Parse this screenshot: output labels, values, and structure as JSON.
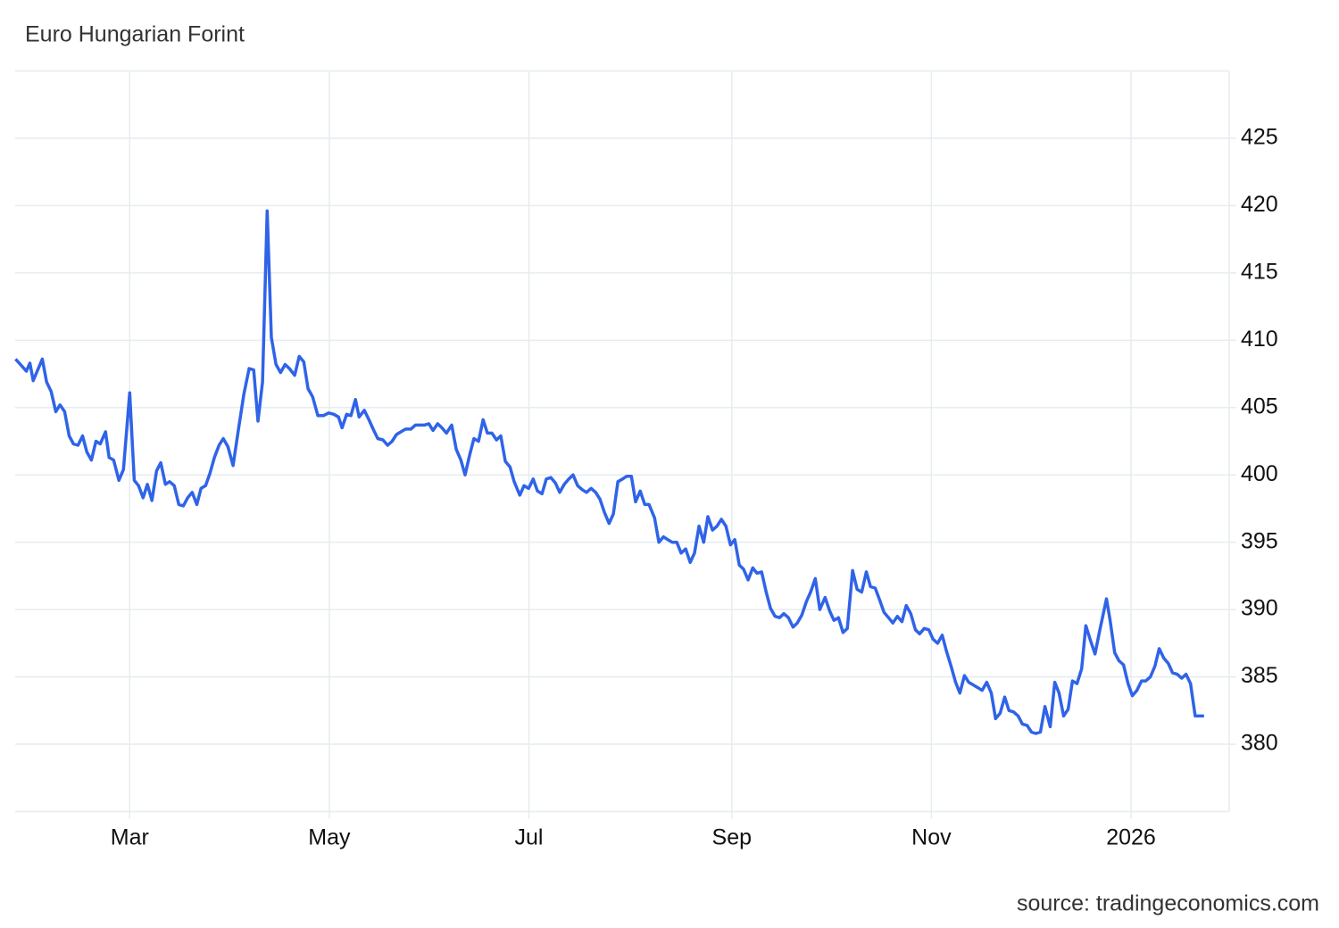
{
  "chart_data": {
    "type": "line",
    "title": "Euro Hungarian Forint",
    "source": "source: tradingeconomics.com",
    "color": "#2f63e8",
    "grid": true,
    "xlim": [
      24,
      395
    ],
    "xticks": [
      {
        "value": 59,
        "label": "Mar"
      },
      {
        "value": 120,
        "label": "May"
      },
      {
        "value": 181,
        "label": "Jul"
      },
      {
        "value": 243,
        "label": "Sep"
      },
      {
        "value": 304,
        "label": "Nov"
      },
      {
        "value": 365,
        "label": "2026"
      }
    ],
    "ylim": [
      375,
      430
    ],
    "yticks": [
      380,
      385,
      390,
      395,
      400,
      405,
      410,
      415,
      420,
      425
    ],
    "x": [
      24.1,
      26,
      27.4,
      28.5,
      29.5,
      30.9,
      32.3,
      33.6,
      35,
      36.4,
      37.7,
      39.1,
      40.5,
      41.8,
      43.2,
      44.6,
      45.9,
      47.3,
      48.7,
      50,
      51.6,
      52.7,
      54.1,
      55.7,
      57.1,
      59,
      60.4,
      61.7,
      63.1,
      64.4,
      65.8,
      67.2,
      68.5,
      69.9,
      71.2,
      72.6,
      74,
      75.4,
      76.7,
      78.1,
      79.5,
      80.8,
      82.2,
      83.5,
      84.9,
      86.3,
      87.6,
      89,
      90.6,
      92.3,
      93.9,
      95.5,
      96.9,
      98.2,
      99.6,
      101,
      102.3,
      103.7,
      105.1,
      106.5,
      107.8,
      109.4,
      110.8,
      112.2,
      113.5,
      114.9,
      116.5,
      118.2,
      119.8,
      121.4,
      122.8,
      123.9,
      125.3,
      126.6,
      128,
      129.1,
      130.7,
      132.1,
      133.4,
      134.8,
      136.4,
      137.8,
      139.2,
      140.5,
      141.9,
      143.3,
      144.9,
      146.3,
      147.6,
      149,
      150.4,
      151.7,
      153.1,
      154.4,
      155.8,
      157.4,
      158.8,
      160.2,
      161.5,
      162.9,
      164.2,
      165.6,
      167,
      168.3,
      169.7,
      171.1,
      172.4,
      173.8,
      175.2,
      176.5,
      178.2,
      179.5,
      180.9,
      182.3,
      183.6,
      185,
      186.3,
      187.7,
      189.1,
      190.4,
      191.8,
      193.2,
      194.5,
      195.9,
      197.3,
      198.6,
      200,
      201.4,
      202.7,
      204.1,
      205.5,
      206.8,
      208.2,
      209.6,
      210.9,
      212.3,
      213.6,
      215,
      216.4,
      217.7,
      219.4,
      220.7,
      222.1,
      223.4,
      224.8,
      226.2,
      227.5,
      228.9,
      230.3,
      231.6,
      233,
      234.4,
      235.7,
      237.1,
      238.5,
      239.8,
      241.2,
      242.6,
      243.9,
      245.3,
      246.6,
      248,
      249.4,
      250.7,
      252.1,
      253.5,
      254.8,
      256.2,
      257.6,
      258.9,
      260.3,
      261.7,
      263,
      264.4,
      265.8,
      267.1,
      268.5,
      269.9,
      271.5,
      272.9,
      274.2,
      275.6,
      277,
      278.3,
      279.9,
      281.3,
      282.7,
      284.1,
      285.4,
      286.8,
      288.2,
      289.5,
      290.9,
      292.2,
      293.6,
      295,
      296.3,
      297.7,
      299.1,
      300.4,
      301.8,
      303.2,
      304.5,
      305.9,
      307.3,
      308.6,
      310,
      311.4,
      312.7,
      314.1,
      315.4,
      316.8,
      318.2,
      319.5,
      320.9,
      322.3,
      323.6,
      325,
      326.4,
      327.7,
      329.1,
      330.5,
      331.8,
      333.2,
      334.6,
      335.9,
      337.3,
      338.7,
      340.3,
      341.7,
      343,
      344.4,
      345.8,
      347.1,
      348.5,
      349.9,
      351.2,
      352.6,
      354,
      355.3,
      357.5,
      358.6,
      360,
      361.3,
      362.7,
      364.1,
      365.4,
      366.8,
      368.2,
      369.5,
      370.9,
      372.3,
      373.6,
      375,
      376.4,
      377.7,
      379.1,
      380.5,
      381.8,
      383.2,
      384.6,
      385.9,
      387.3
    ],
    "values": [
      408.6,
      408.1,
      407.7,
      408.3,
      407,
      407.8,
      408.6,
      406.9,
      406.2,
      404.7,
      405.2,
      404.7,
      402.9,
      402.3,
      402.2,
      402.9,
      401.7,
      401.1,
      402.5,
      402.3,
      403.2,
      401.3,
      401.1,
      399.6,
      400.4,
      406.1,
      399.6,
      399.2,
      398.3,
      399.3,
      398.1,
      400.3,
      400.9,
      399.3,
      399.5,
      399.2,
      397.8,
      397.7,
      398.3,
      398.7,
      397.8,
      399,
      399.2,
      400.1,
      401.3,
      402.2,
      402.7,
      402.1,
      400.7,
      403.5,
      406,
      407.9,
      407.8,
      404,
      406.9,
      419.6,
      410.2,
      408.2,
      407.6,
      408.2,
      407.9,
      407.4,
      408.8,
      408.4,
      406.4,
      405.8,
      404.4,
      404.4,
      404.6,
      404.5,
      404.3,
      403.5,
      404.5,
      404.4,
      405.6,
      404.3,
      404.8,
      404.1,
      403.4,
      402.7,
      402.6,
      402.2,
      402.5,
      403,
      403.2,
      403.4,
      403.4,
      403.7,
      403.7,
      403.7,
      403.8,
      403.3,
      403.8,
      403.5,
      403.1,
      403.7,
      401.9,
      401.1,
      400,
      401.5,
      402.7,
      402.5,
      404.1,
      403.1,
      403.1,
      402.6,
      402.9,
      401,
      400.6,
      399.5,
      398.5,
      399.2,
      399,
      399.7,
      398.8,
      398.6,
      399.7,
      399.8,
      399.4,
      398.7,
      399.3,
      399.7,
      400,
      399.2,
      398.9,
      398.7,
      399,
      398.7,
      398.2,
      397.2,
      396.4,
      397.1,
      399.5,
      399.7,
      399.9,
      399.9,
      398,
      398.8,
      397.8,
      397.8,
      396.8,
      395,
      395.4,
      395.2,
      395,
      395,
      394.2,
      394.5,
      393.5,
      394.2,
      396.2,
      395,
      396.9,
      395.9,
      396.2,
      396.7,
      396.2,
      394.8,
      395.2,
      393.3,
      393,
      392.2,
      393.1,
      392.7,
      392.8,
      391.3,
      390.1,
      389.5,
      389.4,
      389.7,
      389.4,
      388.7,
      389,
      389.6,
      390.6,
      391.3,
      392.3,
      390,
      390.9,
      389.9,
      389.2,
      389.4,
      388.3,
      388.6,
      392.9,
      391.5,
      391.3,
      392.8,
      391.7,
      391.6,
      390.7,
      389.8,
      389.4,
      389,
      389.5,
      389.1,
      390.3,
      389.7,
      388.5,
      388.2,
      388.6,
      388.5,
      387.8,
      387.5,
      388.1,
      386.9,
      385.8,
      384.6,
      383.8,
      385.1,
      384.6,
      384.4,
      384.2,
      384,
      384.6,
      383.8,
      381.9,
      382.3,
      383.5,
      382.5,
      382.4,
      382.1,
      381.5,
      381.4,
      380.9,
      380.8,
      380.9,
      382.8,
      381.3,
      384.6,
      383.8,
      382.1,
      382.6,
      384.7,
      384.5,
      385.6,
      388.8,
      387.7,
      386.7,
      388.3,
      390.8,
      389.2,
      386.8,
      386.2,
      385.9,
      384.5,
      383.6,
      384,
      384.7,
      384.7,
      385,
      385.8,
      387.1,
      386.4,
      386,
      385.3,
      385.2,
      384.9,
      385.2,
      384.5,
      382.1,
      382.1,
      382.1
    ]
  }
}
